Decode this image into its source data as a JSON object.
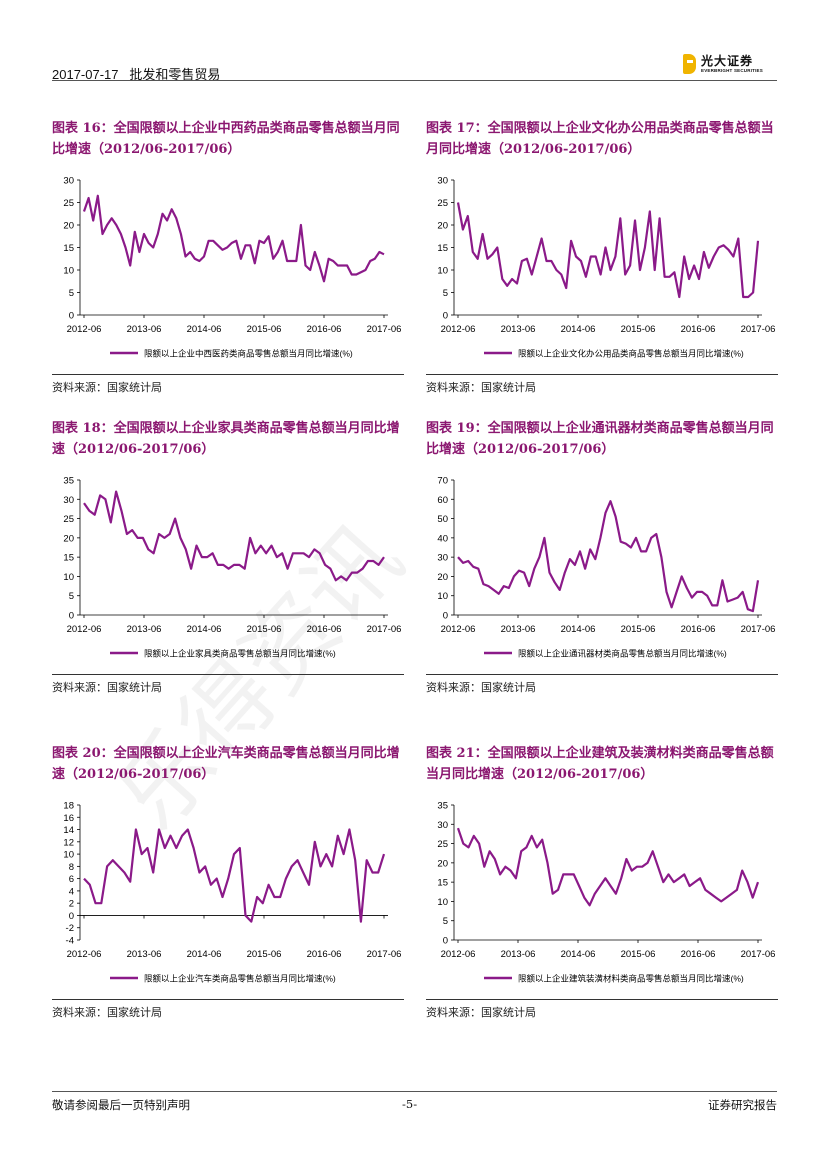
{
  "header": {
    "date": "2017-07-17",
    "title": "批发和零售贸易",
    "logo_cn": "光大证券",
    "logo_en": "EVERBRIGHT SECURITIES"
  },
  "watermark": "乐得资讯",
  "panels": [
    {
      "title": "图表 16：全国限额以上企业中西药品类商品零售总额当月同比增速（2012/06-2017/06）",
      "source": "资料来源：国家统计局",
      "chart_data": {
        "type": "line",
        "color": "#8b1a89",
        "ylim": [
          0,
          30
        ],
        "yticks": [
          0,
          5,
          10,
          15,
          20,
          25,
          30
        ],
        "x_start": "2012-06",
        "x_ticks": [
          "2012-06",
          "2013-06",
          "2014-06",
          "2015-06",
          "2016-06",
          "2017-06"
        ],
        "legend": "限额以上企业中西医药类商品零售总额当月同比增速(%)",
        "values": [
          23,
          26,
          21,
          26.5,
          18,
          20,
          21.5,
          20,
          18,
          15,
          11,
          18.5,
          14,
          18,
          16,
          15,
          18,
          22.5,
          21,
          23.5,
          21.5,
          18,
          13,
          14,
          12.5,
          12,
          13,
          16.5,
          16.5,
          15.5,
          14.5,
          15,
          16,
          16.5,
          12.5,
          15.5,
          15.5,
          11.5,
          16.5,
          16,
          17.5,
          12.5,
          14,
          16.5,
          12,
          12,
          12,
          20,
          11,
          10,
          14,
          11,
          7.5,
          12.5,
          12,
          11,
          11,
          11,
          9,
          9,
          9.5,
          10,
          12,
          12.5,
          14,
          13.5
        ]
      }
    },
    {
      "title": "图表 17：全国限额以上企业文化办公用品类商品零售总额当月同比增速（2012/06-2017/06）",
      "source": "资料来源：国家统计局",
      "chart_data": {
        "type": "line",
        "color": "#8b1a89",
        "ylim": [
          0,
          30
        ],
        "yticks": [
          0,
          5,
          10,
          15,
          20,
          25,
          30
        ],
        "x_start": "2012-06",
        "x_ticks": [
          "2012-06",
          "2013-06",
          "2014-06",
          "2015-06",
          "2016-06",
          "2017-06"
        ],
        "legend": "限额以上企业文化办公用品类商品零售总额当月同比增速(%)",
        "values": [
          25,
          19,
          22,
          14,
          12.5,
          18,
          12.5,
          13.5,
          15,
          8,
          6.5,
          8,
          7,
          12,
          12.5,
          9,
          13,
          17,
          12,
          12,
          10,
          9,
          6,
          16.5,
          13,
          12,
          8.5,
          13,
          13,
          9,
          15,
          10,
          13,
          21.5,
          9,
          11,
          21,
          10,
          15,
          23,
          10,
          21.5,
          8.5,
          8.5,
          9.5,
          4,
          13,
          8,
          11,
          8,
          14,
          10.5,
          13,
          15,
          15.5,
          14.5,
          13,
          17,
          4,
          4,
          5,
          16.5
        ]
      }
    },
    {
      "title": "图表 18：全国限额以上企业家具类商品零售总额当月同比增速（2012/06-2017/06）",
      "source": "资料来源：国家统计局",
      "chart_data": {
        "type": "line",
        "color": "#8b1a89",
        "ylim": [
          0,
          35
        ],
        "yticks": [
          0,
          5,
          10,
          15,
          20,
          25,
          30,
          35
        ],
        "x_start": "2012-06",
        "x_ticks": [
          "2012-06",
          "2013-06",
          "2014-06",
          "2015-06",
          "2016-06",
          "2017-06"
        ],
        "legend": "限额以上企业家具类商品零售总额当月同比增速(%)",
        "values": [
          29,
          27,
          26,
          31,
          30,
          24,
          32,
          27,
          21,
          22,
          20,
          20,
          17,
          16,
          21,
          20,
          21,
          25,
          20,
          17,
          12,
          18,
          15,
          15,
          16,
          13,
          13,
          12,
          13,
          13,
          12,
          20,
          16,
          18,
          16,
          18,
          15,
          16,
          12,
          16,
          16,
          16,
          15,
          17,
          16,
          13,
          12,
          9,
          10,
          9,
          11,
          11,
          12,
          14,
          14,
          13,
          15
        ]
      }
    },
    {
      "title": "图表 19：全国限额以上企业通讯器材类商品零售总额当月同比增速（2012/06-2017/06）",
      "source": "资料来源：国家统计局",
      "chart_data": {
        "type": "line",
        "color": "#8b1a89",
        "ylim": [
          0,
          70
        ],
        "yticks": [
          0,
          10,
          20,
          30,
          40,
          50,
          60,
          70
        ],
        "x_start": "2012-06",
        "x_ticks": [
          "2012-06",
          "2013-06",
          "2014-06",
          "2015-06",
          "2016-06",
          "2017-06"
        ],
        "legend": "限额以上企业通讯器材类商品零售总额当月同比增速(%)",
        "values": [
          30,
          27,
          28,
          25,
          24,
          16,
          15,
          13,
          11,
          15,
          14,
          20,
          23,
          22,
          15,
          24,
          30,
          40,
          22,
          17,
          13,
          22,
          29,
          26,
          33,
          24,
          34,
          29,
          40,
          53,
          59,
          51,
          38,
          37,
          35,
          40,
          33,
          33,
          40,
          42,
          30,
          12,
          4,
          12,
          20,
          14,
          9,
          12,
          12,
          10,
          5,
          5,
          18,
          7,
          8,
          9,
          12,
          3,
          2,
          18
        ]
      }
    },
    {
      "title": "图表 20：全国限额以上企业汽车类商品零售总额当月同比增速（2012/06-2017/06）",
      "source": "资料来源：国家统计局",
      "chart_data": {
        "type": "line",
        "color": "#8b1a89",
        "ylim": [
          -4,
          18
        ],
        "yticks": [
          -4,
          -2,
          0,
          2,
          4,
          6,
          8,
          10,
          12,
          14,
          16,
          18
        ],
        "x_start": "2012-06",
        "x_ticks": [
          "2012-06",
          "2013-06",
          "2014-06",
          "2015-06",
          "2016-06",
          "2017-06"
        ],
        "legend": "限额以上企业汽车类商品零售总额当月同比增速(%)",
        "values": [
          6,
          5,
          2,
          2,
          8,
          9,
          8,
          7,
          5.5,
          14,
          10,
          11,
          7,
          14,
          11,
          13,
          11,
          13,
          14,
          11,
          7,
          8,
          5,
          6,
          3,
          6,
          10,
          11,
          0,
          -1,
          3,
          2,
          5,
          3,
          3,
          6,
          8,
          9,
          7,
          5,
          12,
          8,
          10,
          8,
          13,
          10,
          14,
          9,
          -1,
          9,
          7,
          7,
          10
        ]
      }
    },
    {
      "title": "图表 21：全国限额以上企业建筑及装潢材料类商品零售总额当月同比增速（2012/06-2017/06）",
      "source": "资料来源：国家统计局",
      "chart_data": {
        "type": "line",
        "color": "#8b1a89",
        "ylim": [
          0,
          35
        ],
        "yticks": [
          0,
          5,
          10,
          15,
          20,
          25,
          30,
          35
        ],
        "x_start": "2012-06",
        "x_ticks": [
          "2012-06",
          "2013-06",
          "2014-06",
          "2015-06",
          "2016-06",
          "2017-06"
        ],
        "legend": "限额以上企业建筑装潢材料类商品零售总额当月同比增速(%)",
        "values": [
          29,
          25,
          24,
          27,
          25,
          19,
          23,
          21,
          17,
          19,
          18,
          16,
          23,
          24,
          27,
          24,
          26,
          20,
          12,
          13,
          17,
          17,
          17,
          14,
          11,
          9,
          12,
          14,
          16,
          14,
          12,
          16,
          21,
          18,
          19,
          19,
          20,
          23,
          19,
          15,
          17,
          15,
          16,
          17,
          14,
          15,
          16,
          13,
          12,
          11,
          10,
          11,
          12,
          13,
          18,
          15,
          11,
          15
        ]
      }
    }
  ],
  "footer": {
    "disclaimer": "敬请参阅最后一页特别声明",
    "page": "-5-",
    "report_type": "证券研究报告"
  }
}
